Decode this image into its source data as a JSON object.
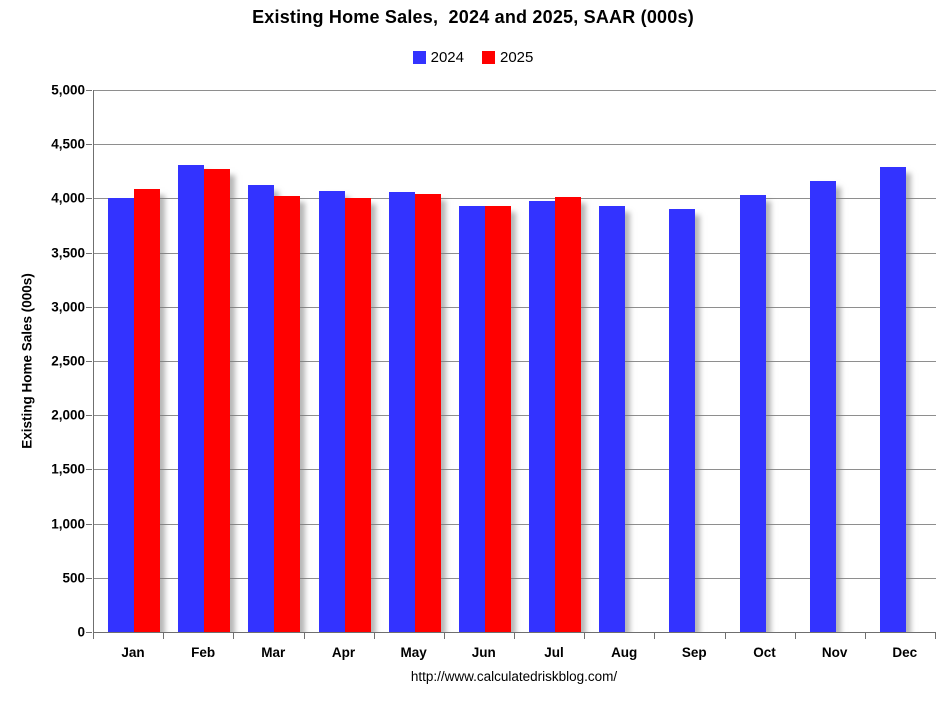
{
  "chart_data": {
    "type": "bar",
    "title": "Existing Home Sales,  2024 and 2025, SAAR (000s)",
    "ylabel": "Existing Home Sales (000s)",
    "xlabel": "",
    "source_url": "http://www.calculatedriskblog.com/",
    "categories": [
      "Jan",
      "Feb",
      "Mar",
      "Apr",
      "May",
      "Jun",
      "Jul",
      "Aug",
      "Sep",
      "Oct",
      "Nov",
      "Dec"
    ],
    "series": [
      {
        "name": "2024",
        "color": "#3333FF",
        "values": [
          4000,
          4310,
          4120,
          4070,
          4060,
          3930,
          3980,
          3930,
          3900,
          4030,
          4160,
          4290
        ]
      },
      {
        "name": "2025",
        "color": "#FF0000",
        "values": [
          4090,
          4270,
          4020,
          4000,
          4040,
          3930,
          4010,
          null,
          null,
          null,
          null,
          null
        ]
      }
    ],
    "ylim": [
      0,
      5000
    ],
    "ytick_step": 500,
    "yticks": [
      {
        "value": 0,
        "label": "0"
      },
      {
        "value": 500,
        "label": "500"
      },
      {
        "value": 1000,
        "label": "1,000"
      },
      {
        "value": 1500,
        "label": "1,500"
      },
      {
        "value": 2000,
        "label": "2,000"
      },
      {
        "value": 2500,
        "label": "2,500"
      },
      {
        "value": 3000,
        "label": "3,000"
      },
      {
        "value": 3500,
        "label": "3,500"
      },
      {
        "value": 4000,
        "label": "4,000"
      },
      {
        "value": 4500,
        "label": "4,500"
      },
      {
        "value": 5000,
        "label": "5,000"
      }
    ],
    "grid": true,
    "legend_position": "top-center",
    "axis_color": "#6f6f6f",
    "gridline_color": "#8e8e8e"
  }
}
